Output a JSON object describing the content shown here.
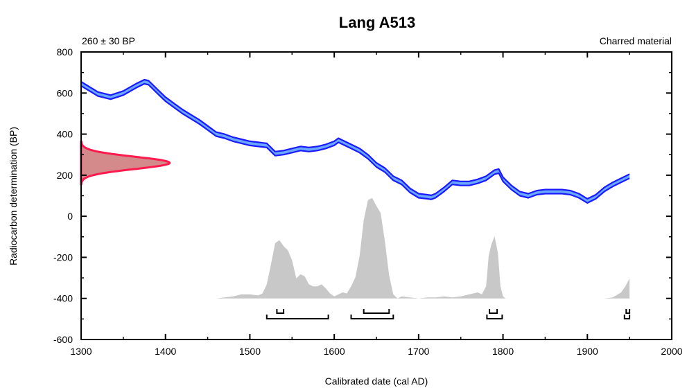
{
  "chart_data": {
    "type": "area",
    "title": "Lang A513",
    "top_left_label": "260 ± 30 BP",
    "top_right_label": "Charred material",
    "xlabel": "Calibrated date (cal AD)",
    "ylabel": "Radiocarbon determination (BP)",
    "xlim": [
      1300,
      2000
    ],
    "ylim": [
      -600,
      800
    ],
    "x_ticks": [
      "1300",
      "1400",
      "1500",
      "1600",
      "1700",
      "1800",
      "1900",
      "2000"
    ],
    "y_ticks": [
      "800",
      "600",
      "400",
      "200",
      "0",
      "-200",
      "-400",
      "-600"
    ],
    "colors": {
      "curve": "#1a1aff",
      "curve_fill": "#6aa8ff",
      "measurement": "#ff1a4d",
      "measurement_fill": "#d48a8a",
      "posterior": "#c8c8c8",
      "axis": "#000000"
    },
    "calibration_curve": {
      "x": [
        1300,
        1310,
        1320,
        1335,
        1350,
        1365,
        1375,
        1380,
        1390,
        1400,
        1410,
        1420,
        1430,
        1440,
        1450,
        1460,
        1470,
        1480,
        1490,
        1500,
        1510,
        1520,
        1530,
        1540,
        1550,
        1560,
        1570,
        1580,
        1590,
        1600,
        1605,
        1610,
        1620,
        1630,
        1640,
        1650,
        1660,
        1670,
        1680,
        1690,
        1700,
        1710,
        1715,
        1720,
        1730,
        1740,
        1750,
        1760,
        1770,
        1780,
        1790,
        1795,
        1800,
        1810,
        1820,
        1830,
        1840,
        1850,
        1860,
        1870,
        1880,
        1890,
        1900,
        1910,
        1920,
        1930,
        1940,
        1950
      ],
      "y": [
        645,
        620,
        595,
        580,
        600,
        635,
        655,
        650,
        610,
        570,
        540,
        510,
        485,
        460,
        430,
        400,
        390,
        375,
        365,
        355,
        350,
        345,
        305,
        310,
        320,
        330,
        325,
        330,
        340,
        355,
        370,
        360,
        340,
        320,
        290,
        250,
        225,
        185,
        165,
        125,
        100,
        95,
        92,
        100,
        130,
        165,
        160,
        160,
        170,
        185,
        215,
        220,
        180,
        140,
        110,
        100,
        115,
        120,
        120,
        120,
        115,
        100,
        75,
        95,
        130,
        155,
        175,
        195
      ],
      "band": 10
    },
    "measurement": {
      "mean": 260,
      "sigma": 30,
      "label": "260 ± 30 BP",
      "peak_x": 1405
    },
    "posterior": {
      "x": [
        1460,
        1470,
        1480,
        1490,
        1500,
        1510,
        1515,
        1520,
        1525,
        1530,
        1535,
        1540,
        1545,
        1550,
        1555,
        1560,
        1565,
        1570,
        1575,
        1580,
        1585,
        1590,
        1595,
        1600,
        1605,
        1610,
        1615,
        1620,
        1625,
        1630,
        1635,
        1640,
        1645,
        1650,
        1655,
        1660,
        1665,
        1670,
        1675,
        1680,
        1690,
        1700,
        1710,
        1720,
        1730,
        1740,
        1750,
        1760,
        1770,
        1775,
        1780,
        1783,
        1786,
        1790,
        1794,
        1797,
        1800,
        1803,
        1806,
        1810,
        1820,
        1830,
        1840,
        1850,
        1860,
        1870,
        1880,
        1890,
        1900,
        1910,
        1920,
        1930,
        1940,
        1945,
        1950
      ],
      "y": [
        0,
        0.01,
        0.02,
        0.04,
        0.04,
        0.03,
        0.05,
        0.14,
        0.34,
        0.55,
        0.58,
        0.52,
        0.48,
        0.38,
        0.2,
        0.24,
        0.22,
        0.14,
        0.12,
        0.12,
        0.14,
        0.1,
        0.05,
        0.02,
        0.04,
        0.06,
        0.05,
        0.12,
        0.21,
        0.42,
        0.78,
        0.98,
        1.0,
        0.92,
        0.85,
        0.57,
        0.23,
        0.04,
        0.0,
        0.02,
        0.01,
        0.0,
        0.01,
        0.01,
        0.02,
        0.01,
        0.02,
        0.04,
        0.06,
        0.04,
        0.12,
        0.42,
        0.53,
        0.62,
        0.45,
        0.12,
        0.02,
        0.0,
        0.0,
        0.0,
        0.0,
        0.0,
        0.0,
        0.0,
        0.0,
        0.0,
        0.0,
        0.0,
        0.0,
        0.0,
        0.0,
        0.01,
        0.06,
        0.12,
        0.2
      ]
    },
    "hpd_68": [
      [
        1532,
        1540
      ],
      [
        1635,
        1665
      ],
      [
        1784,
        1793
      ],
      [
        1946,
        1950
      ]
    ],
    "hpd_95": [
      [
        1520,
        1593
      ],
      [
        1620,
        1670
      ],
      [
        1781,
        1799
      ],
      [
        1944,
        1950
      ]
    ]
  }
}
